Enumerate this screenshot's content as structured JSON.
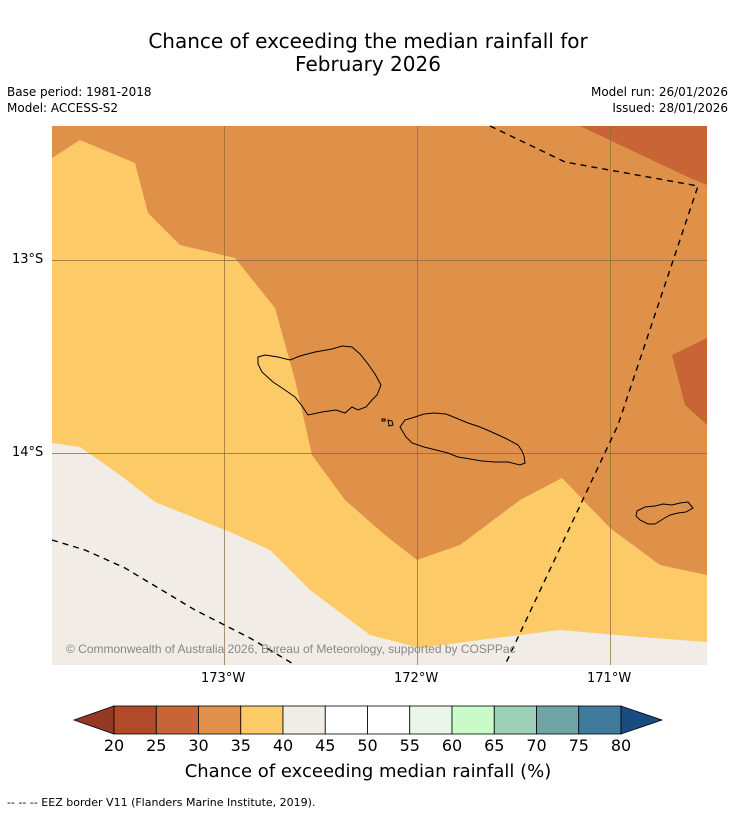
{
  "title_line1": "Chance of exceeding the median rainfall for",
  "title_line2": "February 2026",
  "meta": {
    "base_period": "Base period: 1981-2018",
    "model": "Model: ACCESS-S2",
    "model_run": "Model run: 26/01/2026",
    "issued": "Issued: 28/01/2026"
  },
  "map": {
    "lat_labels": [
      "13°S",
      "14°S"
    ],
    "lon_labels": [
      "173°W",
      "172°W",
      "171°W"
    ],
    "copyright": "© Commonwealth of Australia 2026, Bureau of Meteorology, supported by COSPPac",
    "region_colors": {
      "c20_25": "#b04a28",
      "c25_30": "#c86435",
      "c30_35": "#df9149",
      "c35_40": "#fdca68",
      "c40_45": "#f1ece6"
    }
  },
  "colorbar": {
    "ticks": [
      "20",
      "25",
      "30",
      "35",
      "40",
      "45",
      "50",
      "55",
      "60",
      "65",
      "70",
      "75",
      "80"
    ],
    "bins": [
      "#b04a28",
      "#c86435",
      "#df9149",
      "#fdca68",
      "#f1ece6",
      "#ffffff",
      "#ffffff",
      "#e9f6e9",
      "#c8fbc8",
      "#9ccfb5",
      "#6fa5a5",
      "#417b9b"
    ],
    "under_color": "#953925",
    "over_color": "#194d82",
    "label": "Chance of exceeding median rainfall (%)"
  },
  "footnote": "--  --  -- EEZ border V11 (Flanders Marine Institute, 2019)."
}
